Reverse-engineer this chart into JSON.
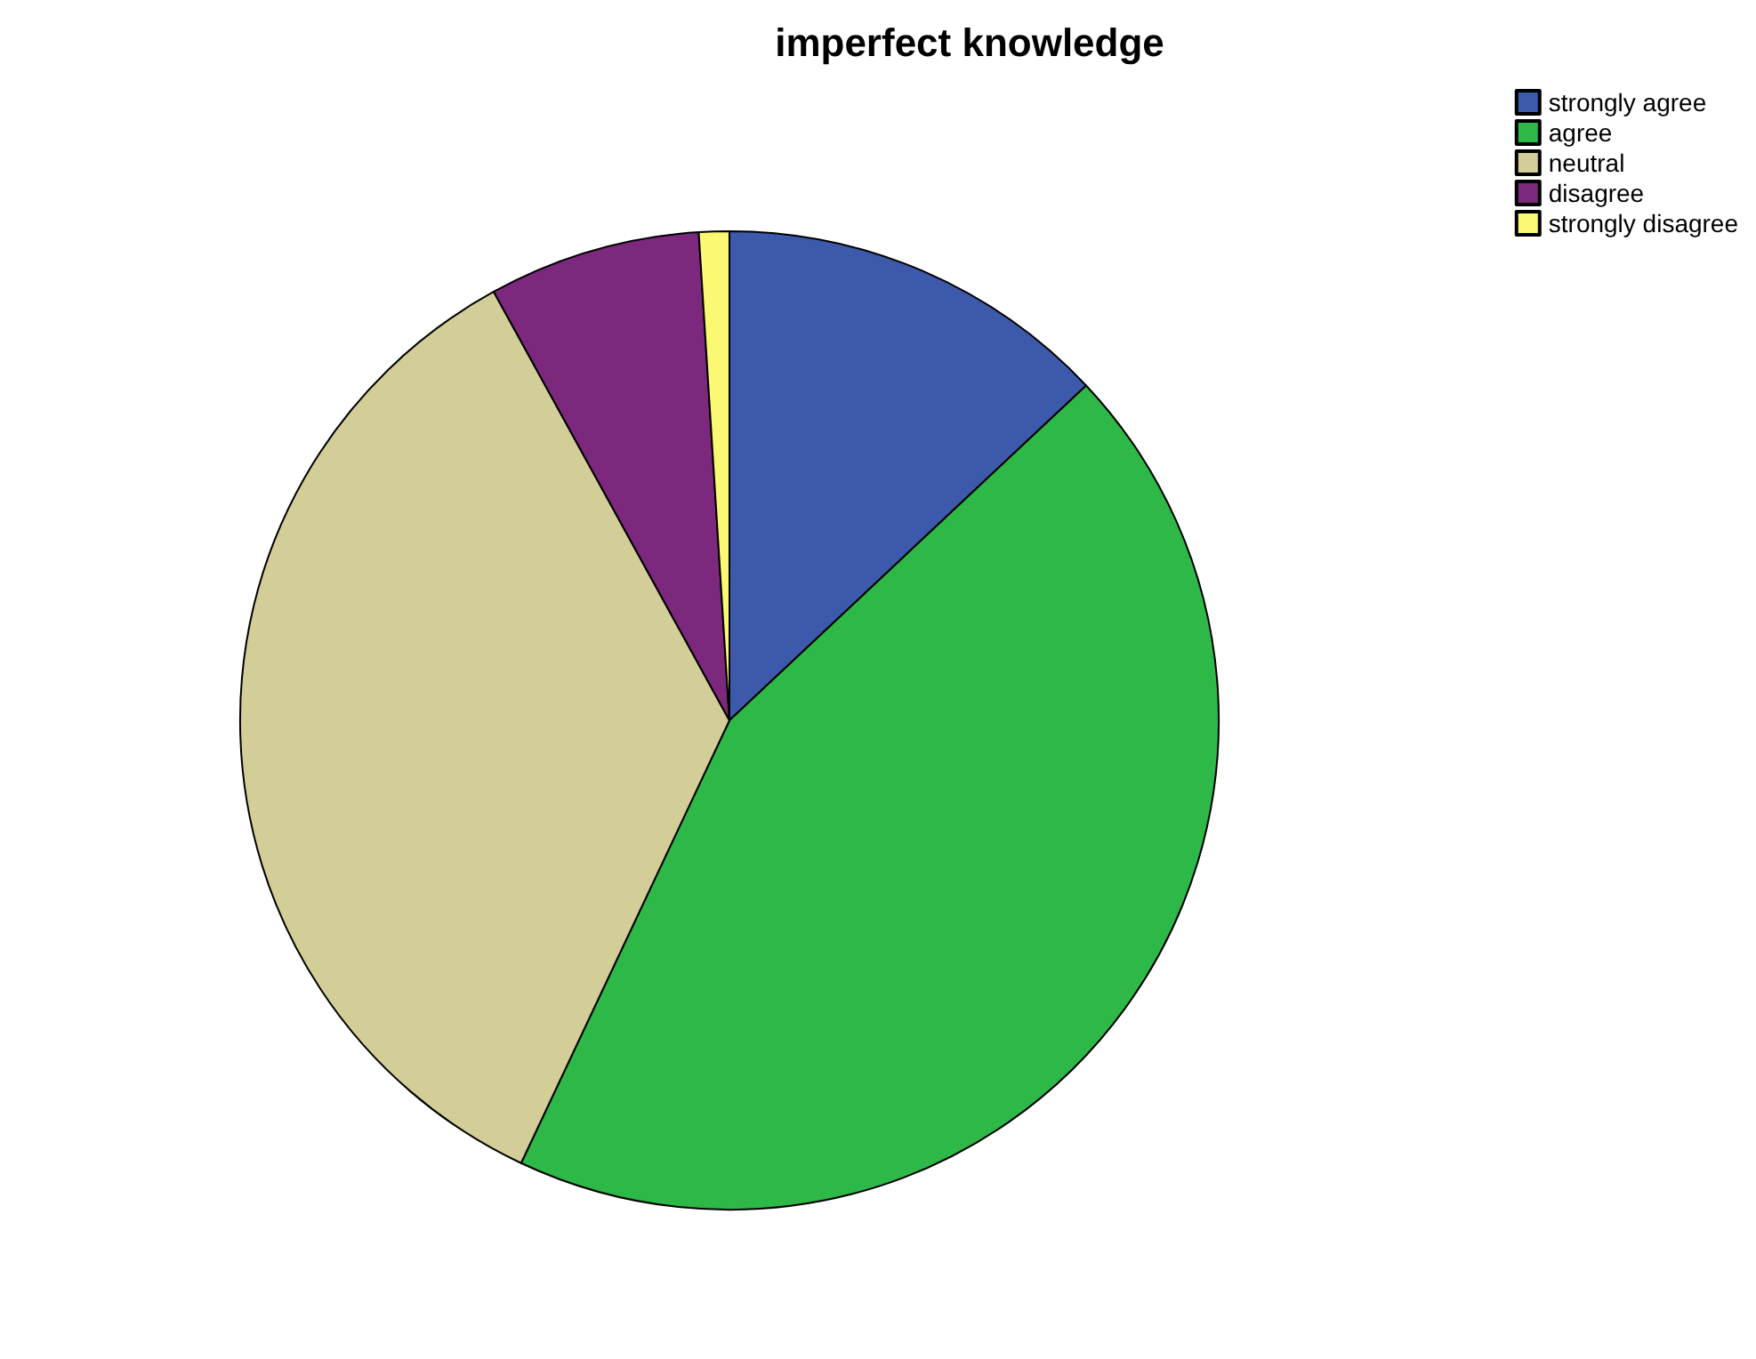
{
  "chart_data": {
    "type": "pie",
    "title": "imperfect knowledge",
    "categories": [
      "strongly agree",
      "agree",
      "neutral",
      "disagree",
      "strongly disagree"
    ],
    "values": [
      13,
      44,
      35,
      7,
      1
    ],
    "colors": [
      "#3d59ab",
      "#2eb848",
      "#d3ce97",
      "#7b287d",
      "#fbf873"
    ],
    "legend": "top right"
  }
}
